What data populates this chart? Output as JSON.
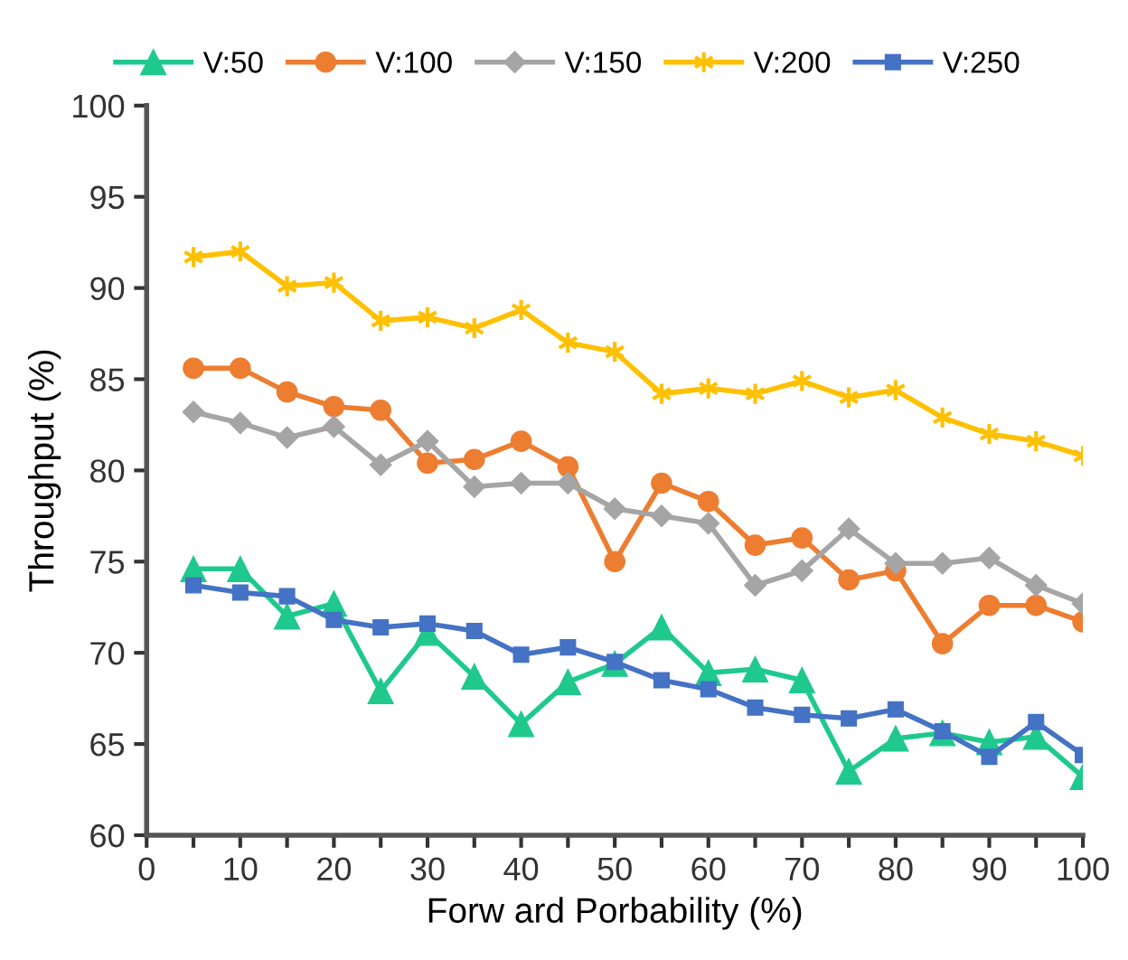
{
  "chart_data": {
    "type": "line",
    "xlabel": "Forw ard Porbability (%)",
    "ylabel": "Throughput (%)",
    "x": [
      5,
      10,
      15,
      20,
      25,
      30,
      35,
      40,
      45,
      50,
      55,
      60,
      65,
      70,
      75,
      80,
      85,
      90,
      95,
      100
    ],
    "series": [
      {
        "name": "V:50",
        "color": "#1fc98e",
        "marker": "triangle",
        "values": [
          74.6,
          74.6,
          72.0,
          72.7,
          67.9,
          71.1,
          68.7,
          66.1,
          68.4,
          69.4,
          71.4,
          68.9,
          69.1,
          68.5,
          63.5,
          65.3,
          65.6,
          65.1,
          65.4,
          63.2
        ]
      },
      {
        "name": "V:100",
        "color": "#ed7d31",
        "marker": "circle",
        "values": [
          85.6,
          85.6,
          84.3,
          83.5,
          83.3,
          80.4,
          80.6,
          81.6,
          80.2,
          75.0,
          79.3,
          78.3,
          75.9,
          76.3,
          74.0,
          74.5,
          70.5,
          72.6,
          72.6,
          71.7
        ]
      },
      {
        "name": "V:150",
        "color": "#a5a5a5",
        "marker": "diamond",
        "values": [
          83.2,
          82.6,
          81.8,
          82.4,
          80.3,
          81.6,
          79.1,
          79.3,
          79.3,
          77.9,
          77.5,
          77.1,
          73.7,
          74.5,
          76.8,
          74.9,
          74.9,
          75.2,
          73.7,
          72.7
        ]
      },
      {
        "name": "V:200",
        "color": "#ffc000",
        "marker": "cross",
        "values": [
          91.7,
          92.0,
          90.1,
          90.3,
          88.2,
          88.4,
          87.8,
          88.8,
          87.0,
          86.5,
          84.2,
          84.5,
          84.2,
          84.9,
          84.0,
          84.4,
          82.9,
          82.0,
          81.6,
          80.8
        ]
      },
      {
        "name": "V:250",
        "color": "#4472c4",
        "marker": "square",
        "values": [
          73.7,
          73.3,
          73.1,
          71.8,
          71.4,
          71.6,
          71.2,
          69.9,
          70.3,
          69.5,
          68.5,
          68.0,
          67.0,
          66.6,
          66.4,
          66.9,
          65.7,
          64.3,
          66.2,
          64.4
        ]
      }
    ],
    "xlim": [
      0,
      100
    ],
    "ylim": [
      60,
      100
    ],
    "xticks": [
      0,
      {
        "value": 5,
        "label": null
      },
      10,
      {
        "value": 15,
        "label": null
      },
      20,
      {
        "value": 25,
        "label": null
      },
      30,
      {
        "value": 35,
        "label": null
      },
      40,
      {
        "value": 45,
        "label": null
      },
      50,
      {
        "value": 55,
        "label": null
      },
      60,
      {
        "value": 65,
        "label": null
      },
      70,
      {
        "value": 75,
        "label": null
      },
      80,
      {
        "value": 85,
        "label": null
      },
      90,
      {
        "value": 95,
        "label": null
      },
      100
    ],
    "yticks": [
      60,
      65,
      70,
      75,
      80,
      85,
      90,
      95,
      100
    ],
    "grid": false,
    "legend": "top",
    "line_style": "solid"
  }
}
